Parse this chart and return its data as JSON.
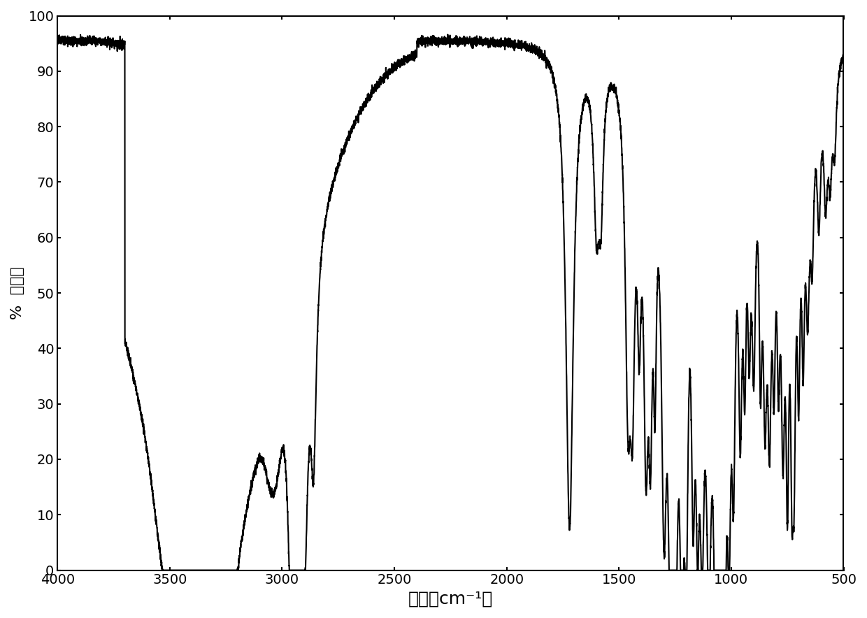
{
  "title": "",
  "xlabel": "波长（cm⁻¹）",
  "ylabel": "%  吸光度",
  "xlim": [
    4000,
    500
  ],
  "ylim": [
    0,
    100
  ],
  "xticks": [
    4000,
    3500,
    3000,
    2500,
    2000,
    1500,
    1000,
    500
  ],
  "yticks": [
    0,
    10,
    20,
    30,
    40,
    50,
    60,
    70,
    80,
    90,
    100
  ],
  "line_color": "#000000",
  "line_width": 1.5,
  "background_color": "#ffffff",
  "xlabel_fontsize": 18,
  "ylabel_fontsize": 16,
  "tick_fontsize": 14
}
